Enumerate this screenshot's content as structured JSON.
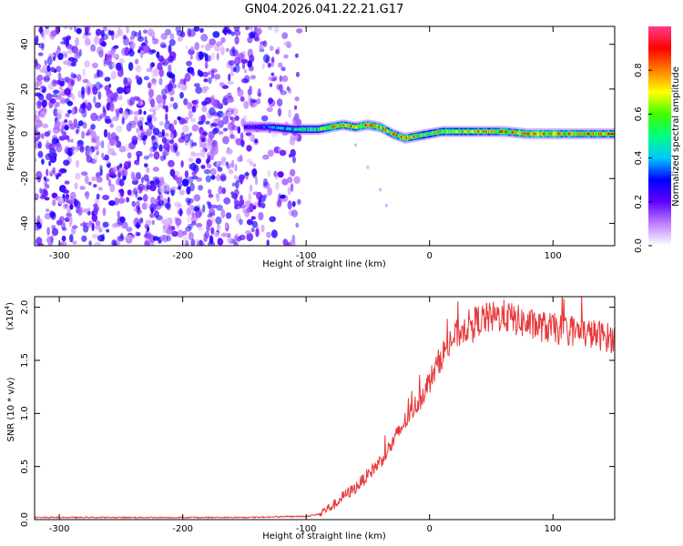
{
  "title": "GN04.2026.041.22.21.G17",
  "chart_data": [
    {
      "type": "heatmap",
      "xlabel": "Height of straight line (km)",
      "ylabel": "Frequency (Hz)",
      "xlim": [
        -320,
        150
      ],
      "ylim": [
        -50,
        48
      ],
      "xticks": [
        -300,
        -200,
        -100,
        0,
        100
      ],
      "yticks": [
        -40,
        -20,
        0,
        20,
        40
      ],
      "colorbar": {
        "label": "Normalized spectral amplitude",
        "range": [
          0,
          1
        ],
        "ticks": [
          0.0,
          0.2,
          0.4,
          0.6,
          0.8
        ],
        "tick_labels": [
          "0.0",
          "0.2",
          "0.4",
          "0.6",
          "0.8"
        ],
        "colors": [
          "#ffffff",
          "#c080ff",
          "#6000ff",
          "#0000ff",
          "#00c8ff",
          "#00ff80",
          "#40ff00",
          "#ffff00",
          "#ff8000",
          "#ff0000",
          "#ff3c8c"
        ]
      },
      "noise_region": {
        "x_range": [
          -320,
          -105
        ],
        "freq_range": [
          -50,
          48
        ],
        "amplitude": [
          0.05,
          0.3
        ]
      },
      "trace": {
        "x": [
          -150,
          -130,
          -110,
          -90,
          -80,
          -70,
          -60,
          -50,
          -40,
          -30,
          -20,
          -10,
          0,
          10,
          20,
          40,
          60,
          80,
          100,
          120,
          150
        ],
        "freq": [
          3,
          3,
          2,
          2,
          3,
          4,
          3,
          4,
          3,
          0,
          -2,
          -1,
          0,
          1,
          1,
          1,
          1,
          0,
          0,
          0,
          0
        ],
        "amplitude": [
          0.25,
          0.35,
          0.5,
          0.6,
          0.8,
          0.85,
          0.8,
          0.9,
          0.85,
          0.8,
          0.85,
          0.75,
          0.7,
          0.75,
          0.7,
          0.75,
          0.8,
          0.85,
          0.9,
          0.85,
          0.8
        ]
      },
      "faint_trail": {
        "x": [
          -60,
          -50,
          -40,
          -35
        ],
        "freq": [
          -5,
          -15,
          -25,
          -32
        ]
      }
    },
    {
      "type": "line",
      "xlabel": "Height of straight line (km)",
      "ylabel": "SNR (10 * v/v)",
      "y_multiplier_label": "(x10",
      "y_multiplier_exponent": "4",
      "y_multiplier_close": ")",
      "xlim": [
        -320,
        150
      ],
      "ylim": [
        0,
        2.1
      ],
      "xticks": [
        -300,
        -200,
        -100,
        0,
        100
      ],
      "yticks": [
        0.0,
        0.5,
        1.0,
        1.5,
        2.0
      ],
      "ytick_labels": [
        "0.0",
        "0.5",
        "1.0",
        "1.5",
        "2.0"
      ],
      "color": "#e8383a",
      "series": [
        {
          "name": "SNR",
          "x": [
            -320,
            -300,
            -250,
            -200,
            -150,
            -110,
            -100,
            -95,
            -90,
            -85,
            -80,
            -75,
            -70,
            -60,
            -50,
            -40,
            -30,
            -20,
            -10,
            0,
            10,
            20,
            30,
            40,
            50,
            60,
            70,
            80,
            90,
            100,
            110,
            120,
            130,
            140,
            150
          ],
          "y": [
            0.02,
            0.02,
            0.02,
            0.02,
            0.02,
            0.03,
            0.03,
            0.04,
            0.05,
            0.09,
            0.12,
            0.16,
            0.22,
            0.3,
            0.42,
            0.55,
            0.72,
            0.92,
            1.1,
            1.3,
            1.55,
            1.72,
            1.82,
            1.88,
            1.9,
            1.92,
            1.88,
            1.84,
            1.82,
            1.8,
            1.78,
            1.77,
            1.75,
            1.73,
            1.7
          ]
        }
      ]
    }
  ]
}
